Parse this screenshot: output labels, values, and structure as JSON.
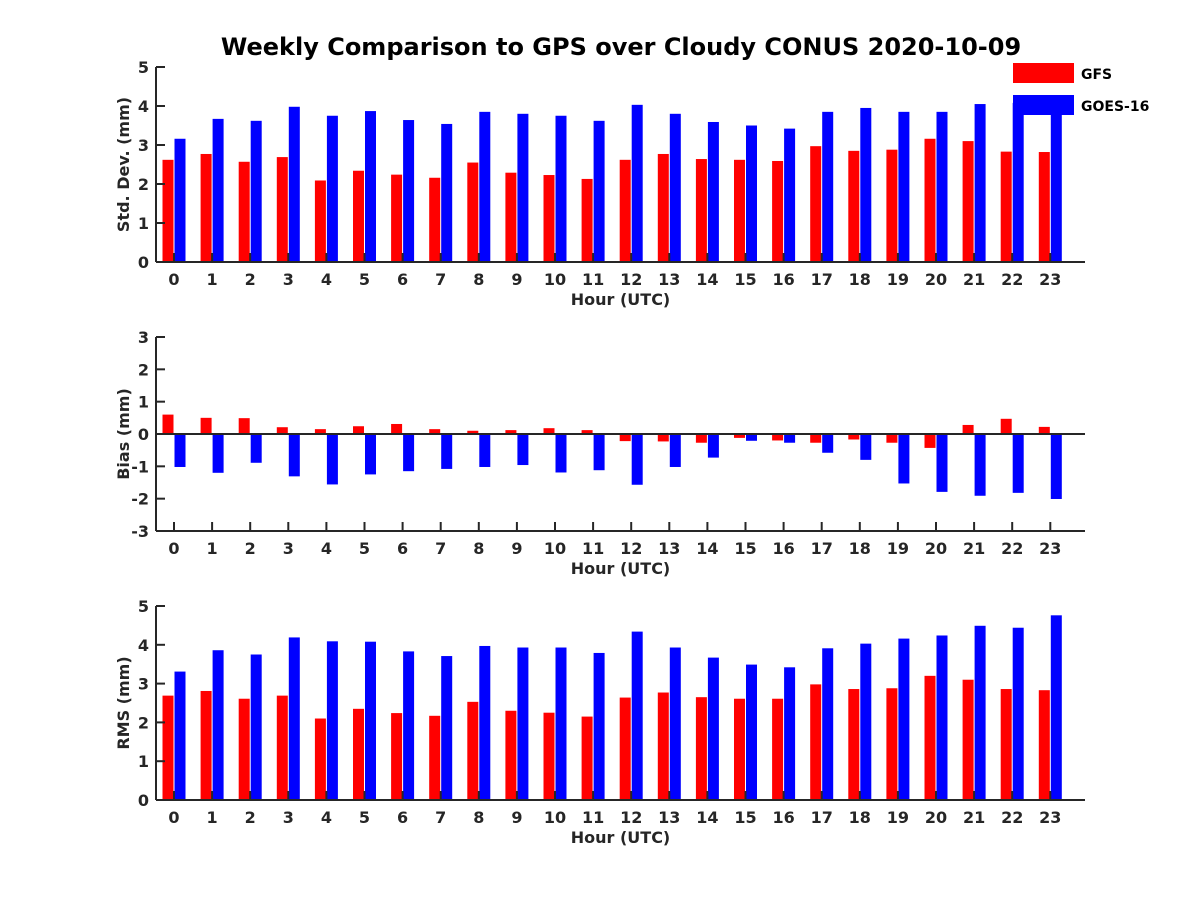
{
  "title": "Weekly Comparison to GPS over Cloudy CONUS 2020-10-09",
  "colors": {
    "gfs": "#ff0000",
    "goes": "#0000ff",
    "axis": "#262626"
  },
  "legend": {
    "placement": "top-right",
    "entries": [
      "GFS",
      "GOES-16"
    ]
  },
  "chart_data": [
    {
      "type": "bar",
      "xlabel": "Hour (UTC)",
      "ylabel": "Std. Dev. (mm)",
      "ylim": [
        0,
        5
      ],
      "yticks": [
        0,
        1,
        2,
        3,
        4,
        5
      ],
      "categories": [
        "0",
        "1",
        "2",
        "3",
        "4",
        "5",
        "6",
        "7",
        "8",
        "9",
        "10",
        "11",
        "12",
        "13",
        "14",
        "15",
        "16",
        "17",
        "18",
        "19",
        "20",
        "21",
        "22",
        "23"
      ],
      "series": [
        {
          "name": "GFS",
          "values": [
            2.62,
            2.77,
            2.57,
            2.69,
            2.09,
            2.34,
            2.24,
            2.16,
            2.55,
            2.29,
            2.23,
            2.13,
            2.62,
            2.77,
            2.64,
            2.62,
            2.59,
            2.97,
            2.85,
            2.88,
            3.16,
            3.1,
            2.83,
            2.82
          ]
        },
        {
          "name": "GOES-16",
          "values": [
            3.16,
            3.67,
            3.62,
            3.98,
            3.75,
            3.87,
            3.64,
            3.54,
            3.85,
            3.8,
            3.75,
            3.62,
            4.03,
            3.8,
            3.59,
            3.5,
            3.42,
            3.85,
            3.95,
            3.85,
            3.85,
            4.05,
            4.08,
            4.12
          ]
        }
      ]
    },
    {
      "type": "bar",
      "xlabel": "Hour (UTC)",
      "ylabel": "Bias (mm)",
      "ylim": [
        -3,
        3
      ],
      "yticks": [
        -3,
        -2,
        -1,
        0,
        1,
        2,
        3
      ],
      "categories": [
        "0",
        "1",
        "2",
        "3",
        "4",
        "5",
        "6",
        "7",
        "8",
        "9",
        "10",
        "11",
        "12",
        "13",
        "14",
        "15",
        "16",
        "17",
        "18",
        "19",
        "20",
        "21",
        "22",
        "23"
      ],
      "series": [
        {
          "name": "GFS",
          "values": [
            0.6,
            0.5,
            0.49,
            0.21,
            0.15,
            0.24,
            0.31,
            0.15,
            0.1,
            0.12,
            0.18,
            0.12,
            -0.22,
            -0.23,
            -0.27,
            -0.12,
            -0.2,
            -0.27,
            -0.17,
            -0.27,
            -0.43,
            0.28,
            0.47,
            0.22
          ]
        },
        {
          "name": "GOES-16",
          "values": [
            -1.02,
            -1.2,
            -0.89,
            -1.31,
            -1.56,
            -1.25,
            -1.15,
            -1.08,
            -1.02,
            -0.96,
            -1.19,
            -1.12,
            -1.57,
            -1.02,
            -0.73,
            -0.21,
            -0.27,
            -0.58,
            -0.8,
            -1.53,
            -1.79,
            -1.91,
            -1.82,
            -2.01
          ]
        }
      ]
    },
    {
      "type": "bar",
      "xlabel": "Hour (UTC)",
      "ylabel": "RMS (mm)",
      "ylim": [
        0,
        5
      ],
      "yticks": [
        0,
        1,
        2,
        3,
        4,
        5
      ],
      "categories": [
        "0",
        "1",
        "2",
        "3",
        "4",
        "5",
        "6",
        "7",
        "8",
        "9",
        "10",
        "11",
        "12",
        "13",
        "14",
        "15",
        "16",
        "17",
        "18",
        "19",
        "20",
        "21",
        "22",
        "23"
      ],
      "series": [
        {
          "name": "GFS",
          "values": [
            2.69,
            2.81,
            2.61,
            2.69,
            2.1,
            2.35,
            2.24,
            2.17,
            2.53,
            2.3,
            2.25,
            2.15,
            2.64,
            2.77,
            2.65,
            2.61,
            2.61,
            2.98,
            2.86,
            2.88,
            3.2,
            3.1,
            2.86,
            2.83
          ]
        },
        {
          "name": "GOES-16",
          "values": [
            3.31,
            3.86,
            3.75,
            4.19,
            4.09,
            4.08,
            3.83,
            3.71,
            3.97,
            3.93,
            3.93,
            3.79,
            4.34,
            3.93,
            3.67,
            3.49,
            3.42,
            3.91,
            4.03,
            4.16,
            4.24,
            4.49,
            4.44,
            4.76
          ]
        }
      ]
    }
  ]
}
